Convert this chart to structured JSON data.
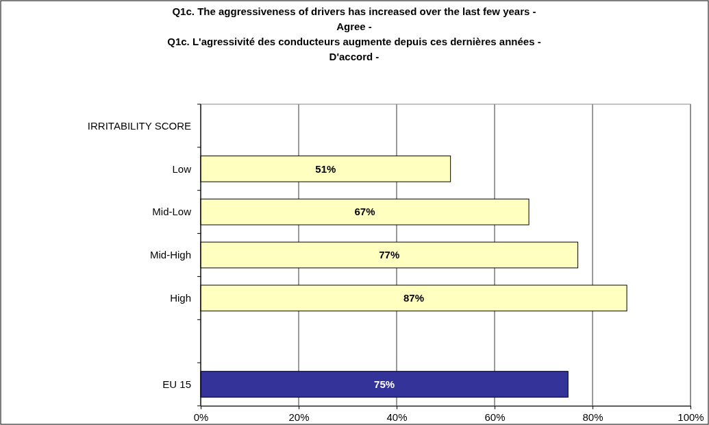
{
  "chart_data": {
    "type": "bar",
    "orientation": "horizontal",
    "title": "Q1c. The aggressiveness of drivers has increased over the last few years - Agree -",
    "subtitle": "Q1c. L'agressivité des conducteurs augmente depuis ces dernières années - D'accord -",
    "categories": [
      "IRRITABILITY SCORE",
      "Low",
      "Mid-Low",
      "Mid-High",
      "High",
      null,
      "EU 15"
    ],
    "values": [
      null,
      51,
      67,
      77,
      87,
      null,
      75
    ],
    "colors": [
      null,
      "#ffffc0",
      "#ffffc0",
      "#ffffc0",
      "#ffffc0",
      null,
      "#333399"
    ],
    "xlim": [
      0,
      100
    ],
    "xticks": [
      {
        "value": 0,
        "label": "0%"
      },
      {
        "value": 20,
        "label": "20%"
      },
      {
        "value": 40,
        "label": "40%"
      },
      {
        "value": 60,
        "label": "60%"
      },
      {
        "value": 80,
        "label": "80%"
      },
      {
        "value": 100,
        "label": "100%"
      }
    ],
    "value_labels": [
      null,
      "51%",
      "67%",
      "77%",
      "87%",
      null,
      "75%"
    ],
    "grid": "x"
  }
}
